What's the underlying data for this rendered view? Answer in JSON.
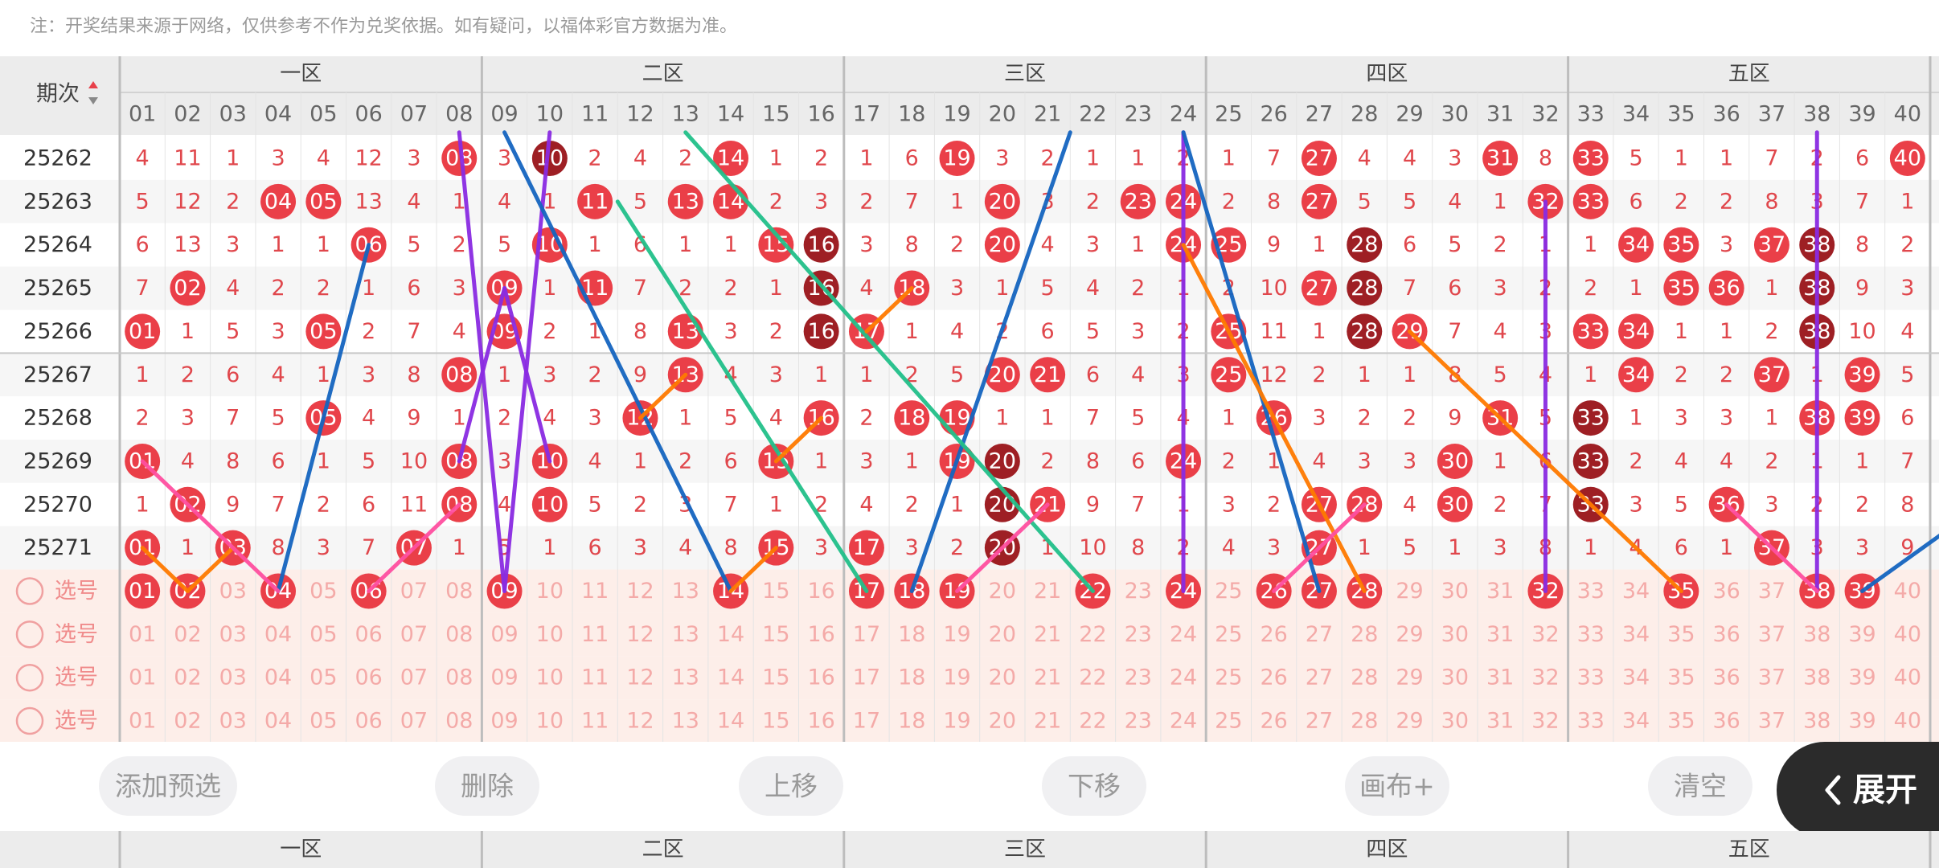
{
  "note": "注：开奖结果来源于网络，仅供参考不作为兑奖依据。如有疑问，以福体彩官方数据为准。",
  "period_label": "期次",
  "zones": [
    "一区",
    "二区",
    "三区",
    "四区",
    "五区"
  ],
  "columns": [
    "01",
    "02",
    "03",
    "04",
    "05",
    "06",
    "07",
    "08",
    "09",
    "10",
    "11",
    "12",
    "13",
    "14",
    "15",
    "16",
    "17",
    "18",
    "19",
    "20",
    "21",
    "22",
    "23",
    "24",
    "25",
    "26",
    "27",
    "28",
    "29",
    "30",
    "31",
    "32",
    "33",
    "34",
    "35",
    "36",
    "37",
    "38",
    "39",
    "40"
  ],
  "rows": [
    {
      "period": "25262",
      "dark": [
        "10"
      ],
      "cells": [
        "4",
        "11",
        "1",
        "3",
        "4",
        "12",
        "3",
        "08",
        "3",
        "10",
        "2",
        "4",
        "2",
        "14",
        "1",
        "2",
        "1",
        "6",
        "19",
        "3",
        "2",
        "1",
        "1",
        "2",
        "1",
        "7",
        "27",
        "4",
        "4",
        "3",
        "31",
        "8",
        "33",
        "5",
        "1",
        "1",
        "7",
        "2",
        "6",
        "40"
      ]
    },
    {
      "period": "25263",
      "dark": [],
      "cells": [
        "5",
        "12",
        "2",
        "04",
        "05",
        "13",
        "4",
        "1",
        "4",
        "1",
        "11",
        "5",
        "13",
        "14",
        "2",
        "3",
        "2",
        "7",
        "1",
        "20",
        "3",
        "2",
        "23",
        "24",
        "2",
        "8",
        "27",
        "5",
        "5",
        "4",
        "1",
        "32",
        "33",
        "6",
        "2",
        "2",
        "8",
        "3",
        "7",
        "1"
      ]
    },
    {
      "period": "25264",
      "dark": [
        "16",
        "28",
        "38"
      ],
      "cells": [
        "6",
        "13",
        "3",
        "1",
        "1",
        "06",
        "5",
        "2",
        "5",
        "10",
        "1",
        "6",
        "1",
        "1",
        "15",
        "16",
        "3",
        "8",
        "2",
        "20",
        "4",
        "3",
        "1",
        "24",
        "25",
        "9",
        "1",
        "28",
        "6",
        "5",
        "2",
        "1",
        "1",
        "34",
        "35",
        "3",
        "37",
        "38",
        "8",
        "2"
      ]
    },
    {
      "period": "25265",
      "dark": [
        "16",
        "28",
        "38"
      ],
      "cells": [
        "7",
        "02",
        "4",
        "2",
        "2",
        "1",
        "6",
        "3",
        "09",
        "1",
        "11",
        "7",
        "2",
        "2",
        "1",
        "16",
        "4",
        "18",
        "3",
        "1",
        "5",
        "4",
        "2",
        "1",
        "2",
        "10",
        "27",
        "28",
        "7",
        "6",
        "3",
        "2",
        "2",
        "1",
        "35",
        "36",
        "1",
        "38",
        "9",
        "3"
      ]
    },
    {
      "period": "25266",
      "dark": [
        "16",
        "28",
        "38"
      ],
      "cells": [
        "01",
        "1",
        "5",
        "3",
        "05",
        "2",
        "7",
        "4",
        "09",
        "2",
        "1",
        "8",
        "13",
        "3",
        "2",
        "16",
        "17",
        "1",
        "4",
        "2",
        "6",
        "5",
        "3",
        "2",
        "25",
        "11",
        "1",
        "28",
        "29",
        "7",
        "4",
        "3",
        "33",
        "34",
        "1",
        "1",
        "2",
        "38",
        "10",
        "4"
      ]
    },
    {
      "period": "25267",
      "dark": [],
      "cells": [
        "1",
        "2",
        "6",
        "4",
        "1",
        "3",
        "8",
        "08",
        "1",
        "3",
        "2",
        "9",
        "13",
        "4",
        "3",
        "1",
        "1",
        "2",
        "5",
        "20",
        "21",
        "6",
        "4",
        "3",
        "25",
        "12",
        "2",
        "1",
        "1",
        "8",
        "5",
        "4",
        "1",
        "34",
        "2",
        "2",
        "37",
        "1",
        "39",
        "5"
      ]
    },
    {
      "period": "25268",
      "dark": [
        "33"
      ],
      "cells": [
        "2",
        "3",
        "7",
        "5",
        "05",
        "4",
        "9",
        "1",
        "2",
        "4",
        "3",
        "12",
        "1",
        "5",
        "4",
        "16",
        "2",
        "18",
        "19",
        "1",
        "1",
        "7",
        "5",
        "4",
        "1",
        "26",
        "3",
        "2",
        "2",
        "9",
        "31",
        "5",
        "33",
        "1",
        "3",
        "3",
        "1",
        "38",
        "39",
        "6"
      ]
    },
    {
      "period": "25269",
      "dark": [
        "20",
        "33"
      ],
      "cells": [
        "01",
        "4",
        "8",
        "6",
        "1",
        "5",
        "10",
        "08",
        "3",
        "10",
        "4",
        "1",
        "2",
        "6",
        "15",
        "1",
        "3",
        "1",
        "19",
        "20",
        "2",
        "8",
        "6",
        "24",
        "2",
        "1",
        "4",
        "3",
        "3",
        "30",
        "1",
        "6",
        "33",
        "2",
        "4",
        "4",
        "2",
        "1",
        "1",
        "7"
      ]
    },
    {
      "period": "25270",
      "dark": [
        "20",
        "33"
      ],
      "cells": [
        "1",
        "02",
        "9",
        "7",
        "2",
        "6",
        "11",
        "08",
        "4",
        "10",
        "5",
        "2",
        "3",
        "7",
        "1",
        "2",
        "4",
        "2",
        "1",
        "20",
        "21",
        "9",
        "7",
        "1",
        "3",
        "2",
        "27",
        "28",
        "4",
        "30",
        "2",
        "7",
        "33",
        "3",
        "5",
        "36",
        "3",
        "2",
        "2",
        "8"
      ]
    },
    {
      "period": "25271",
      "dark": [
        "20"
      ],
      "cells": [
        "01",
        "1",
        "03",
        "8",
        "3",
        "7",
        "07",
        "1",
        "5",
        "1",
        "6",
        "3",
        "4",
        "8",
        "15",
        "3",
        "17",
        "3",
        "2",
        "20",
        "1",
        "10",
        "8",
        "2",
        "4",
        "3",
        "27",
        "1",
        "5",
        "1",
        "3",
        "8",
        "1",
        "4",
        "6",
        "1",
        "37",
        "3",
        "3",
        "9"
      ]
    }
  ],
  "picks": [
    {
      "label": "选号",
      "selected": [
        "01",
        "02",
        "04",
        "06",
        "09",
        "14",
        "17",
        "18",
        "19",
        "22",
        "24",
        "26",
        "27",
        "28",
        "32",
        "35",
        "38",
        "39"
      ]
    },
    {
      "label": "选号",
      "selected": []
    },
    {
      "label": "选号",
      "selected": []
    },
    {
      "label": "选号",
      "selected": []
    }
  ],
  "buttons": [
    "添加预选",
    "删除",
    "上移",
    "下移",
    "画布+",
    "清空"
  ],
  "expand": "展开"
}
